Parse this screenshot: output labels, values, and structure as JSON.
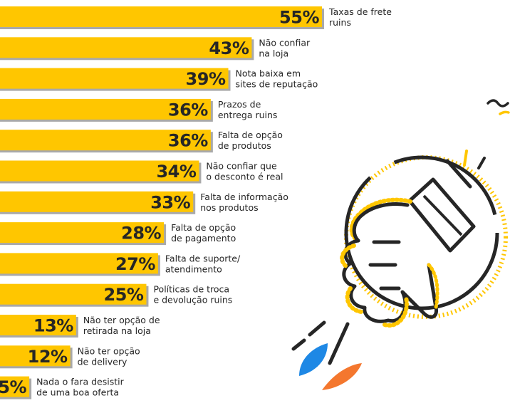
{
  "chart_data": {
    "type": "bar",
    "orientation": "horizontal",
    "value_suffix": "%",
    "xlim": [
      0,
      55
    ],
    "grid": false,
    "categories": [
      [
        "Taxas de frete",
        "ruins"
      ],
      [
        "Não confiar",
        "na loja"
      ],
      [
        "Nota baixa em",
        "sites de reputação"
      ],
      [
        "Prazos de",
        "entrega ruins"
      ],
      [
        "Falta de opção",
        "de produtos"
      ],
      [
        "Não confiar que",
        "o desconto é real"
      ],
      [
        "Falta de informação",
        "nos produtos"
      ],
      [
        "Falta de opção",
        "de pagamento"
      ],
      [
        "Falta de suporte/",
        "atendimento"
      ],
      [
        "Políticas de troca",
        "e devolução ruins"
      ],
      [
        "Não ter opção de",
        "retirada na loja"
      ],
      [
        "Não ter opção",
        "de delivery"
      ],
      [
        "Nada o fara desistir",
        "de uma boa oferta"
      ]
    ],
    "values": [
      55,
      43,
      39,
      36,
      36,
      34,
      33,
      28,
      27,
      25,
      13,
      12,
      5
    ],
    "bar_color": "#ffc600",
    "shadow_color": "#a9a9a9",
    "text_color": "#262626"
  },
  "illustration": {
    "icon": "thumbs-down-icon",
    "colors": {
      "outline": "#262626",
      "accent": "#ffc600",
      "blue": "#1e88e5",
      "orange": "#f4772e"
    }
  }
}
